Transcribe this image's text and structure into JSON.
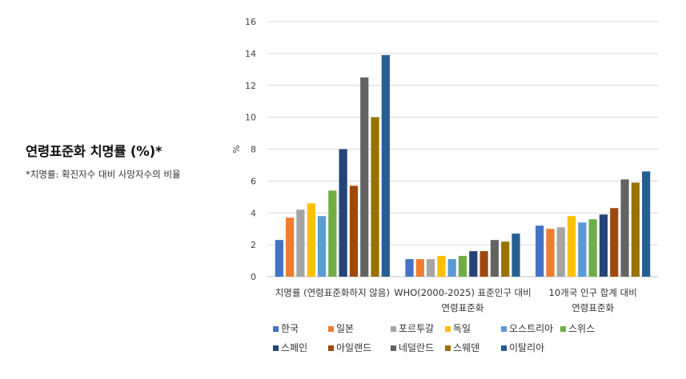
{
  "title": "연령표준화 치명률 (%)*",
  "subtitle": "*치명률: 확진자수 대비 사망자수의 비율",
  "chart_data": {
    "type": "bar",
    "ylabel": "%",
    "ylim": [
      0,
      16
    ],
    "yticks": [
      0,
      2,
      4,
      6,
      8,
      10,
      12,
      14,
      16
    ],
    "grid": true,
    "legend_position": "bottom",
    "categories": [
      [
        "치명률 (연령표준화하지 않음)"
      ],
      [
        "WHO(2000-2025) 표준인구 대비",
        "연령표준화"
      ],
      [
        "10개국 인구 합계 대비",
        "연령표준화"
      ]
    ],
    "series": [
      {
        "name": "한국",
        "color": "#4472C4",
        "values": [
          2.3,
          1.1,
          3.2
        ]
      },
      {
        "name": "일본",
        "color": "#ED7D31",
        "values": [
          3.7,
          1.1,
          3.0
        ]
      },
      {
        "name": "포르투갈",
        "color": "#A5A5A5",
        "values": [
          4.2,
          1.1,
          3.1
        ]
      },
      {
        "name": "독일",
        "color": "#FFC000",
        "values": [
          4.6,
          1.3,
          3.8
        ]
      },
      {
        "name": "오스트리아",
        "color": "#5B9BD5",
        "values": [
          3.8,
          1.1,
          3.4
        ]
      },
      {
        "name": "스위스",
        "color": "#70AD47",
        "values": [
          5.4,
          1.3,
          3.6
        ]
      },
      {
        "name": "스페인",
        "color": "#264478",
        "values": [
          8.0,
          1.6,
          3.9
        ]
      },
      {
        "name": "아일랜드",
        "color": "#9E480E",
        "values": [
          5.7,
          1.6,
          4.3
        ]
      },
      {
        "name": "네덜란드",
        "color": "#636363",
        "values": [
          12.5,
          2.3,
          6.1
        ]
      },
      {
        "name": "스웨덴",
        "color": "#997300",
        "values": [
          10.0,
          2.2,
          5.9
        ]
      },
      {
        "name": "이탈리아",
        "color": "#255E91",
        "values": [
          13.9,
          2.7,
          6.6
        ]
      }
    ]
  }
}
